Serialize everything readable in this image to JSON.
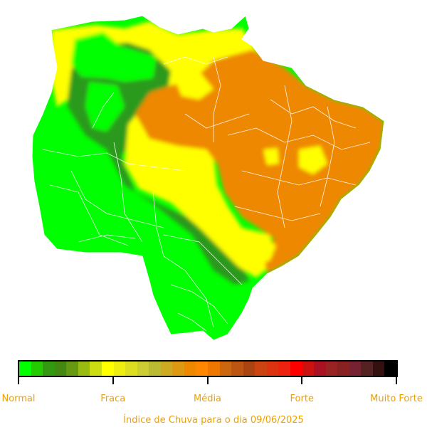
{
  "legend": {
    "colors": [
      "#00ff00",
      "#22cc00",
      "#339911",
      "#448811",
      "#669911",
      "#99bb11",
      "#ccdd11",
      "#ffff00",
      "#eeee11",
      "#dddd22",
      "#cccc33",
      "#bbbb33",
      "#ccaa22",
      "#dd9911",
      "#ee8800",
      "#ff8800",
      "#ee7700",
      "#cc6611",
      "#bb5511",
      "#aa4411",
      "#cc4411",
      "#dd3311",
      "#ee2211",
      "#ff0000",
      "#cc1111",
      "#aa1122",
      "#992222",
      "#882222",
      "#772233",
      "#552222",
      "#331111",
      "#000000"
    ],
    "labels": [
      "Normal",
      "Fraca",
      "Média",
      "Forte",
      "Muito Forte"
    ]
  },
  "map": {
    "zone_colors": {
      "normal": "#00ff00",
      "normal_dark": "#2a9a1a",
      "fraca": "#ffff00",
      "media": "#ee8800"
    }
  },
  "caption": "Índice de Chuva para o dia 09/06/2025"
}
